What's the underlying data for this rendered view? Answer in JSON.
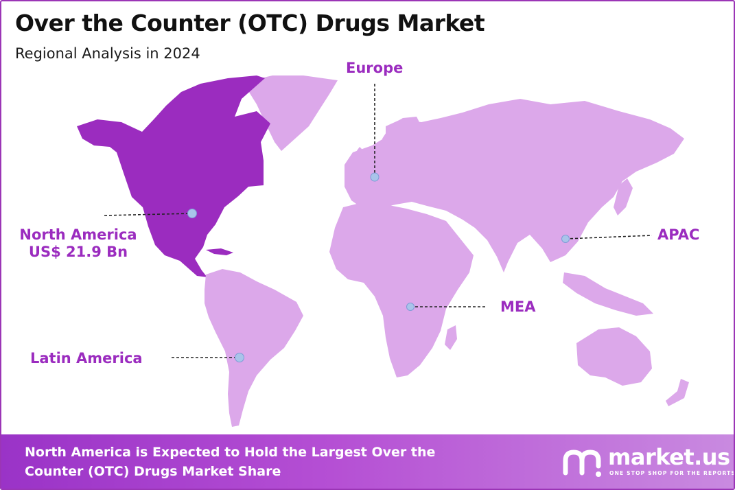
{
  "header": {
    "title": "Over the Counter (OTC) Drugs Market",
    "subtitle": "Regional Analysis in 2024"
  },
  "map": {
    "highlight_color": "#9b2cbf",
    "base_color": "#dca8ea",
    "regions": [
      {
        "id": "north-america",
        "name": "North America",
        "value": "US$ 21.9 Bn",
        "highlighted": true
      },
      {
        "id": "europe",
        "name": "Europe",
        "highlighted": false
      },
      {
        "id": "apac",
        "name": "APAC",
        "highlighted": false
      },
      {
        "id": "mea",
        "name": "MEA",
        "highlighted": false
      },
      {
        "id": "latin-america",
        "name": "Latin America",
        "highlighted": false
      }
    ]
  },
  "footer": {
    "statement": "North America is Expected to Hold the Largest Over the Counter (OTC) Drugs Market Share",
    "brand_name": "market.us",
    "brand_tagline": "ONE STOP SHOP FOR THE REPORTS",
    "logo_icon": "market-us-logo-icon"
  }
}
